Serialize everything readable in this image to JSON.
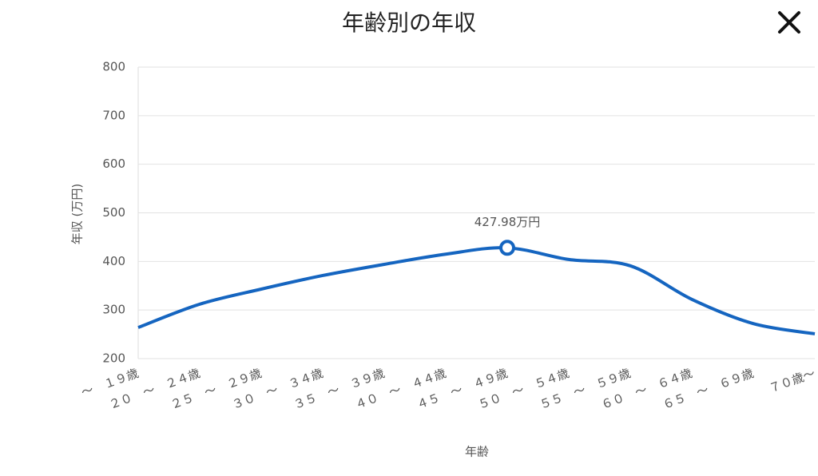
{
  "chart_data": {
    "type": "line",
    "title": "年齢別の年収",
    "x_label": "年齢",
    "y_label": "年収 (万円)",
    "categories": [
      "〜　１９歳",
      "２０　〜　２４歳",
      "２５　〜　２９歳",
      "３０　〜　３４歳",
      "３５　〜　３９歳",
      "４０　〜　４４歳",
      "４５　〜　４９歳",
      "５０　〜　５４歳",
      "５５　〜　５９歳",
      "６０　〜　６４歳",
      "６５　〜　６９歳",
      "７０歳〜"
    ],
    "series": [
      {
        "name": "年収",
        "color": "#1565c0",
        "values": [
          264,
          312,
          343,
          371,
          394,
          415,
          427.98,
          404,
          391,
          322,
          272,
          251
        ],
        "value_labels": [
          null,
          null,
          null,
          null,
          null,
          null,
          "427.98万円",
          null,
          null,
          null,
          null,
          null
        ]
      }
    ],
    "ylim": [
      200,
      800
    ],
    "yticks": [
      200,
      300,
      400,
      500,
      600,
      700,
      800
    ],
    "grid": true
  }
}
